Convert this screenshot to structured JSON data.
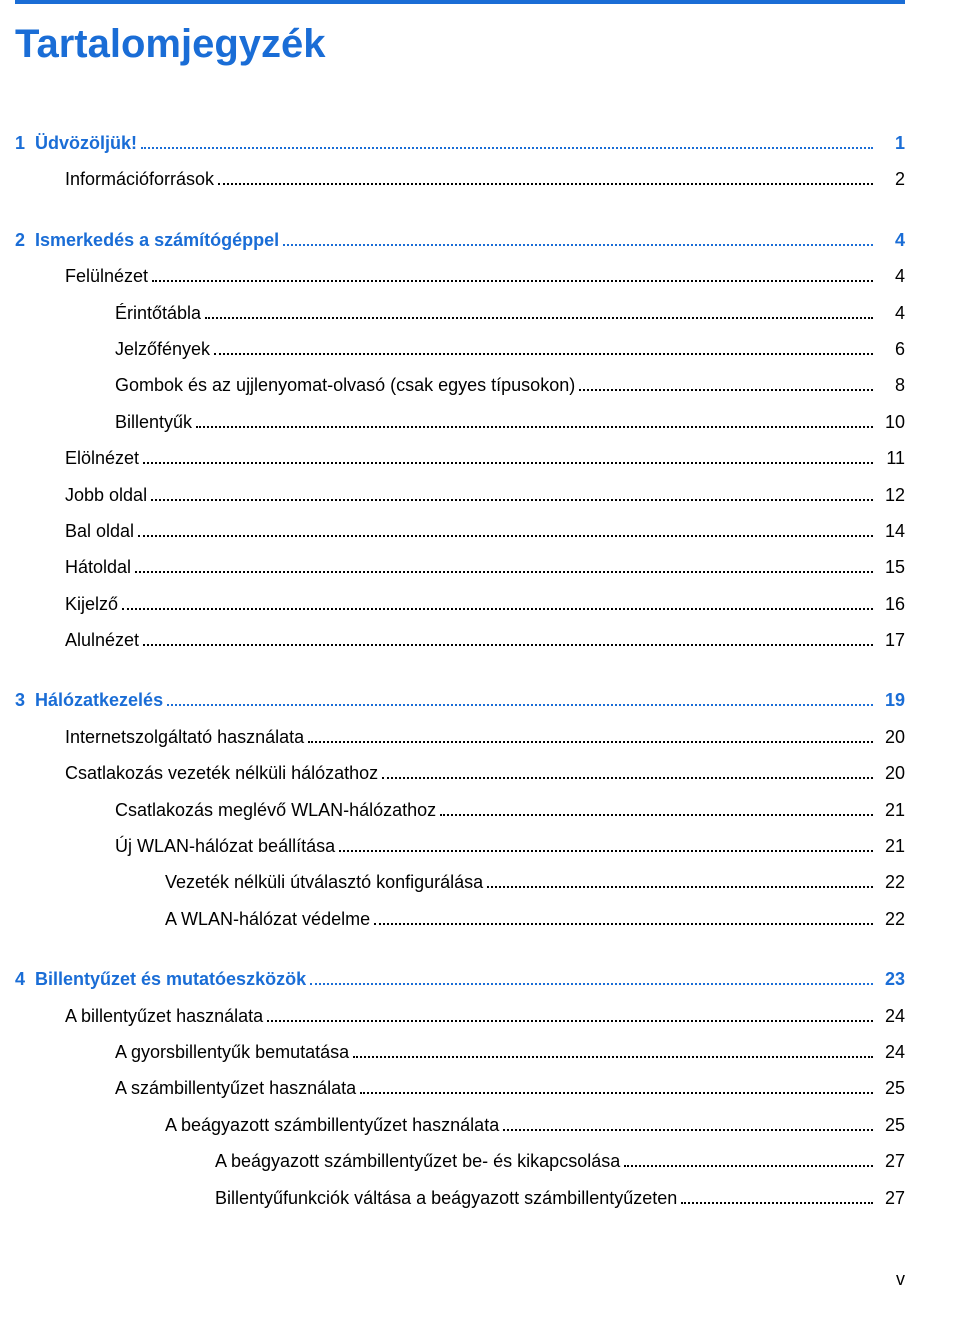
{
  "title": "Tartalomjegyzék",
  "footer_page": "v",
  "colors": {
    "accent": "#1a6dd6",
    "text": "#000000",
    "background": "#ffffff"
  },
  "typography": {
    "title_fontsize_pt": 30,
    "body_fontsize_pt": 14,
    "font_family": "Arial"
  },
  "toc": [
    {
      "type": "section",
      "number": "1",
      "label": "Üdvözöljük!",
      "page": "1"
    },
    {
      "type": "item",
      "indent": 1,
      "label": "Információforrások",
      "page": "2"
    },
    {
      "type": "section",
      "number": "2",
      "label": "Ismerkedés a számítógéppel",
      "page": "4"
    },
    {
      "type": "item",
      "indent": 1,
      "label": "Felülnézet",
      "page": "4"
    },
    {
      "type": "item",
      "indent": 2,
      "label": "Érintőtábla",
      "page": "4"
    },
    {
      "type": "item",
      "indent": 2,
      "label": "Jelzőfények",
      "page": "6"
    },
    {
      "type": "item",
      "indent": 2,
      "label": "Gombok és az ujjlenyomat-olvasó (csak egyes típusokon)",
      "page": "8"
    },
    {
      "type": "item",
      "indent": 2,
      "label": "Billentyűk",
      "page": "10"
    },
    {
      "type": "item",
      "indent": 1,
      "label": "Elölnézet",
      "page": "11"
    },
    {
      "type": "item",
      "indent": 1,
      "label": "Jobb oldal",
      "page": "12"
    },
    {
      "type": "item",
      "indent": 1,
      "label": "Bal oldal",
      "page": "14"
    },
    {
      "type": "item",
      "indent": 1,
      "label": "Hátoldal",
      "page": "15"
    },
    {
      "type": "item",
      "indent": 1,
      "label": "Kijelző",
      "page": "16"
    },
    {
      "type": "item",
      "indent": 1,
      "label": "Alulnézet",
      "page": "17"
    },
    {
      "type": "section",
      "number": "3",
      "label": "Hálózatkezelés",
      "page": "19"
    },
    {
      "type": "item",
      "indent": 1,
      "label": "Internetszolgáltató használata",
      "page": "20"
    },
    {
      "type": "item",
      "indent": 1,
      "label": "Csatlakozás vezeték nélküli hálózathoz",
      "page": "20"
    },
    {
      "type": "item",
      "indent": 2,
      "label": "Csatlakozás meglévő WLAN-hálózathoz",
      "page": "21"
    },
    {
      "type": "item",
      "indent": 2,
      "label": "Új WLAN-hálózat beállítása",
      "page": "21"
    },
    {
      "type": "item",
      "indent": 3,
      "label": "Vezeték nélküli útválasztó konfigurálása",
      "page": "22"
    },
    {
      "type": "item",
      "indent": 3,
      "label": "A WLAN-hálózat védelme",
      "page": "22"
    },
    {
      "type": "section",
      "number": "4",
      "label": "Billentyűzet és mutatóeszközök",
      "page": "23"
    },
    {
      "type": "item",
      "indent": 1,
      "label": "A billentyűzet használata",
      "page": "24"
    },
    {
      "type": "item",
      "indent": 2,
      "label": "A gyorsbillentyűk bemutatása",
      "page": "24"
    },
    {
      "type": "item",
      "indent": 2,
      "label": "A számbillentyűzet használata",
      "page": "25"
    },
    {
      "type": "item",
      "indent": 3,
      "label": "A beágyazott számbillentyűzet használata",
      "page": "25"
    },
    {
      "type": "item",
      "indent": 4,
      "label": "A beágyazott számbillentyűzet be- és kikapcsolása",
      "page": "27"
    },
    {
      "type": "item",
      "indent": 4,
      "label": "Billentyűfunkciók váltása a beágyazott számbillentyűzeten",
      "page": "27"
    }
  ]
}
